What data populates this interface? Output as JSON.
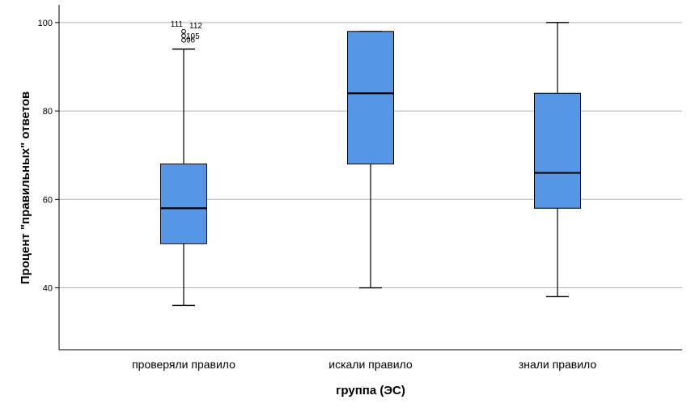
{
  "chart_data": {
    "type": "boxplot",
    "xlabel": "группа (ЭС)",
    "ylabel": "Процент \"правильных\" ответов",
    "ylim": [
      26,
      104
    ],
    "yticks": [
      40,
      60,
      80,
      100
    ],
    "grid": true,
    "colors": {
      "box": "#5597e6",
      "grid": "#b4b4b4",
      "axis": "#000000"
    },
    "categories": [
      "проверяли правило",
      "искали правило",
      "знали правило"
    ],
    "boxes": [
      {
        "name": "проверяли правило",
        "min": 36,
        "q1": 50,
        "median": 58,
        "q3": 68,
        "max": 94,
        "outliers": [
          {
            "value": 96,
            "label": "96"
          },
          {
            "value": 97,
            "label": "105"
          },
          {
            "value": 98,
            "label": "111"
          },
          {
            "value": 98,
            "label": "112"
          }
        ]
      },
      {
        "name": "искали правило",
        "min": 40,
        "q1": 68,
        "median": 84,
        "q3": 98,
        "max": 98,
        "outliers": []
      },
      {
        "name": "знали правило",
        "min": 38,
        "q1": 58,
        "median": 66,
        "q3": 84,
        "max": 100,
        "outliers": []
      }
    ]
  }
}
